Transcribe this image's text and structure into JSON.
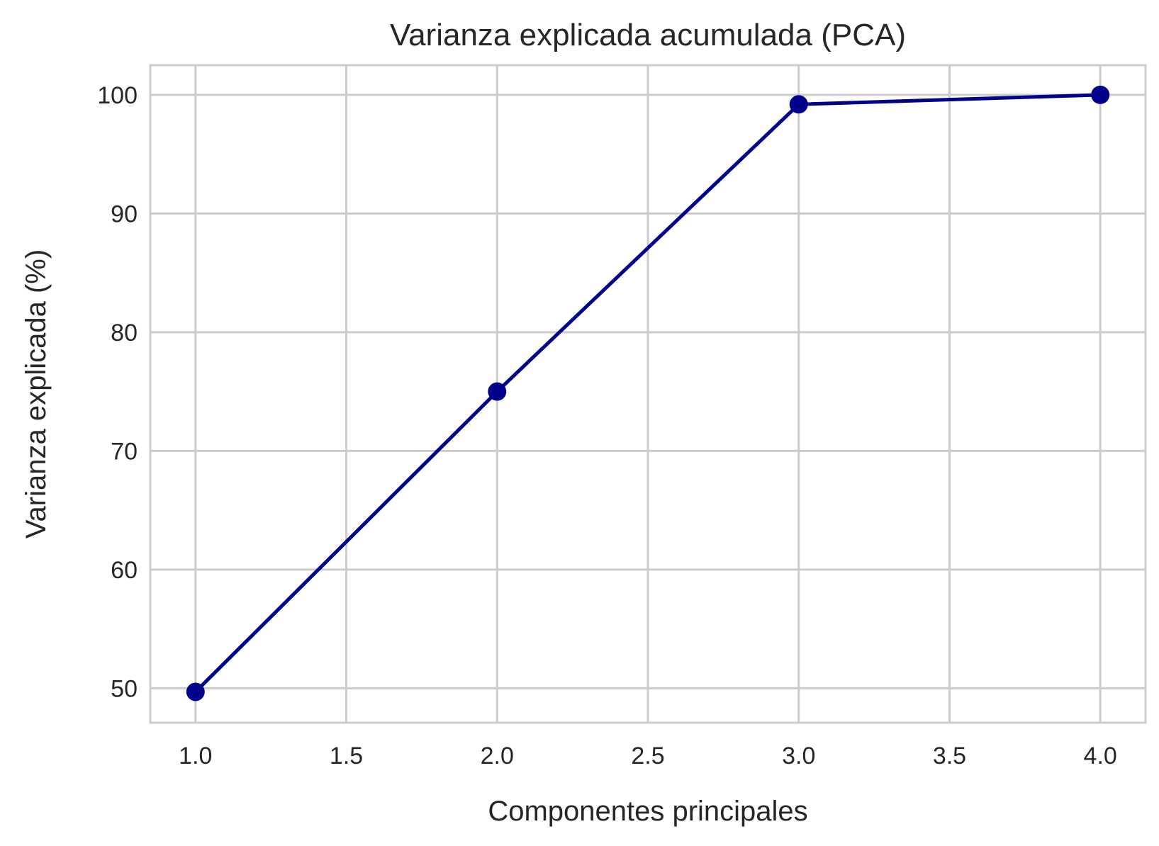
{
  "chart_data": {
    "type": "line",
    "title": "Varianza explicada acumulada (PCA)",
    "xlabel": "Componentes principales",
    "ylabel": "Varianza explicada (%)",
    "x": [
      1,
      2,
      3,
      4
    ],
    "series": [
      {
        "values": [
          49.7,
          75.0,
          99.2,
          100.0
        ],
        "color": "#00008b",
        "marker": "circle"
      }
    ],
    "xlim": [
      0.85,
      4.15
    ],
    "ylim": [
      47.1,
      102.5
    ],
    "x_ticks": [
      "1.0",
      "1.5",
      "2.0",
      "2.5",
      "3.0",
      "3.5",
      "4.0"
    ],
    "x_tick_values": [
      1.0,
      1.5,
      2.0,
      2.5,
      3.0,
      3.5,
      4.0
    ],
    "y_ticks": [
      "50",
      "60",
      "70",
      "80",
      "90",
      "100"
    ],
    "y_tick_values": [
      50,
      60,
      70,
      80,
      90,
      100
    ],
    "grid": true,
    "legend": "none",
    "colors": {
      "line": "#00008b",
      "grid": "#cccccc",
      "spine": "#cccccc",
      "text": "#262626",
      "background": "#ffffff"
    }
  }
}
